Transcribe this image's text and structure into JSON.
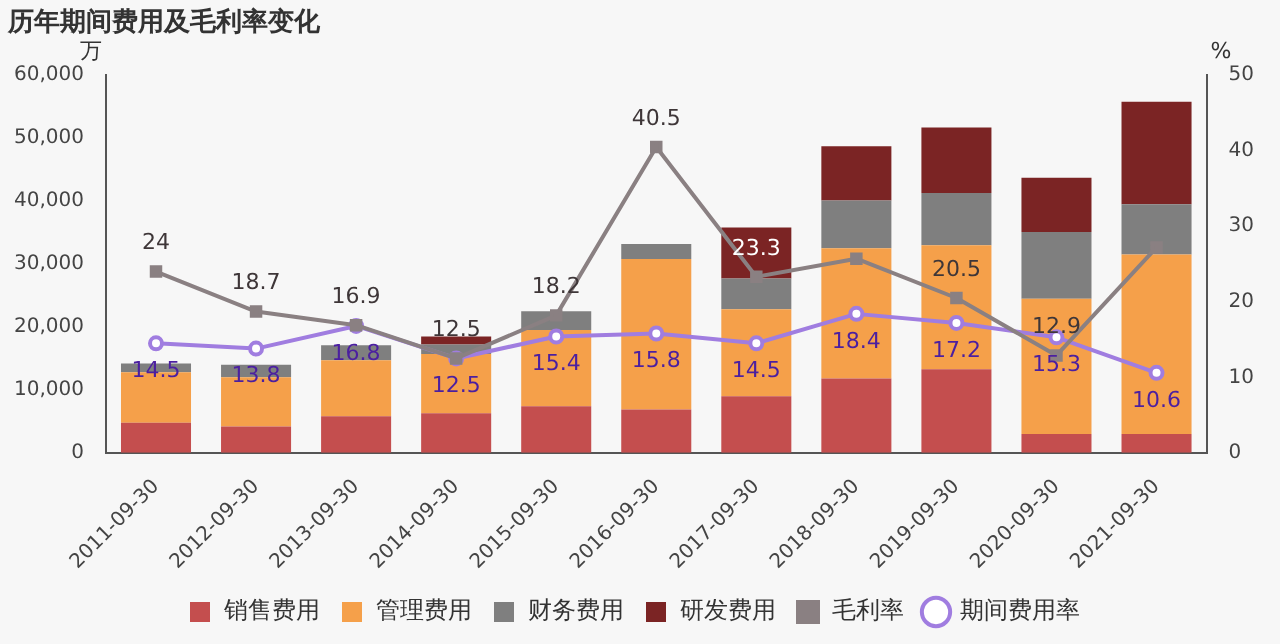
{
  "chart_data": {
    "type": "bar",
    "title": "历年期间费用及毛利率变化",
    "ylabel": "万",
    "y2label": "%",
    "categories": [
      "2011-09-30",
      "2012-09-30",
      "2013-09-30",
      "2014-09-30",
      "2015-09-30",
      "2016-09-30",
      "2017-09-30",
      "2018-09-30",
      "2019-09-30",
      "2020-09-30",
      "2021-09-30"
    ],
    "stacked": true,
    "series": [
      {
        "name": "销售费用",
        "color": "#c44e4e",
        "values": [
          4800,
          4200,
          5800,
          6300,
          7400,
          6900,
          9000,
          11800,
          13300,
          3000,
          3000
        ]
      },
      {
        "name": "管理费用",
        "color": "#f5a04a",
        "values": [
          8000,
          7800,
          8900,
          9400,
          12100,
          23900,
          13800,
          20700,
          19700,
          21500,
          28500
        ]
      },
      {
        "name": "财务费用",
        "color": "#7f7f7f",
        "values": [
          1400,
          2000,
          2400,
          1500,
          3000,
          2400,
          4900,
          7600,
          8300,
          10600,
          8000
        ]
      },
      {
        "name": "研发费用",
        "color": "#7b2424",
        "values": [
          0,
          0,
          0,
          1300,
          0,
          0,
          8100,
          8600,
          10400,
          8600,
          16300
        ]
      },
      {
        "name": "毛利率",
        "type": "line",
        "axis": "y2",
        "marker": "square",
        "color": "#8a8082",
        "values": [
          24,
          18.7,
          16.9,
          12.5,
          18.2,
          40.5,
          23.3,
          25.7,
          20.5,
          12.9,
          27.2
        ],
        "value_labels": [
          "24",
          "18.7",
          "16.9",
          "12.5",
          "18.2",
          "40.5",
          "23.3",
          null,
          "20.5",
          "12.9",
          null
        ]
      },
      {
        "name": "期间费用率",
        "type": "line",
        "axis": "y2",
        "marker": "circle",
        "color": "#a07de0",
        "values": [
          14.5,
          13.8,
          16.8,
          12.5,
          15.4,
          15.8,
          14.5,
          18.4,
          17.2,
          15.3,
          10.6
        ],
        "value_labels": [
          "14.5",
          "13.8",
          "16.8",
          "12.5",
          "15.4",
          "15.8",
          "14.5",
          "18.4",
          "17.2",
          "15.3",
          "10.6"
        ]
      }
    ],
    "ylim": [
      0,
      60000
    ],
    "yticks": [
      0,
      {
        "value": 10000,
        "label": "10,000"
      },
      {
        "value": 20000,
        "label": "20,000"
      },
      {
        "value": 30000,
        "label": "30,000"
      },
      {
        "value": 40000,
        "label": "40,000"
      },
      {
        "value": 50000,
        "label": "50,000"
      },
      {
        "value": 60000,
        "label": "60,000"
      }
    ],
    "y2lim": [
      0,
      50
    ],
    "y2ticks": [
      0,
      10,
      20,
      30,
      40,
      50
    ],
    "grid": false,
    "legend": "bottom"
  }
}
